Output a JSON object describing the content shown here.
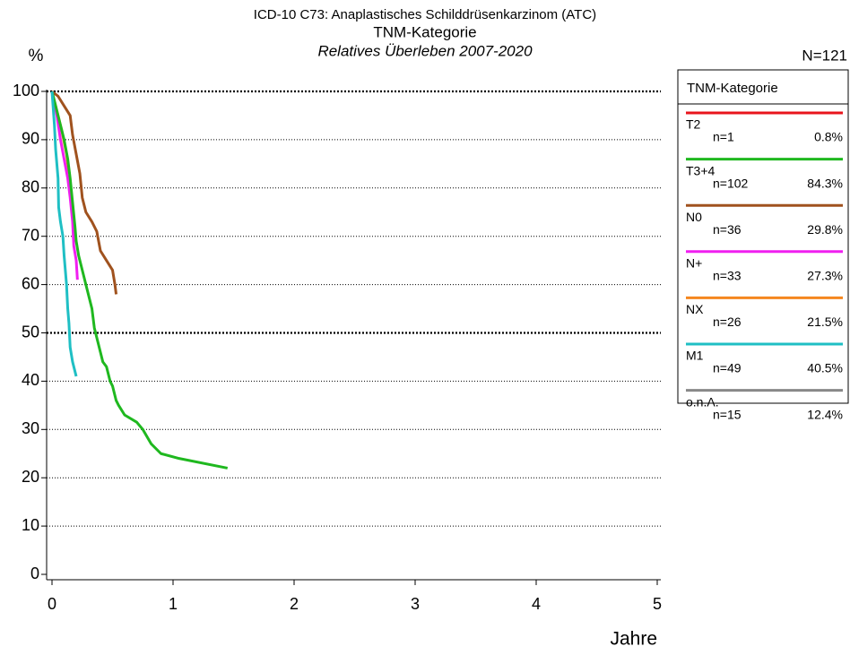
{
  "chart_data": {
    "type": "line",
    "title": "ICD-10 C73: Anaplastisches Schilddrüsenkarzinom (ATC)",
    "subtitle": "TNM-Kategorie",
    "subtitle2": "Relatives Überleben 2007-2020",
    "ylabel": "%",
    "xlabel": "Jahre",
    "total": "N=121",
    "legend_title": "TNM-Kategorie",
    "legend_position": "right",
    "xlim": [
      0,
      5
    ],
    "xticks": [
      0,
      1,
      2,
      3,
      4,
      5
    ],
    "ylim": [
      0,
      100
    ],
    "yticks": [
      0,
      10,
      20,
      30,
      40,
      50,
      60,
      70,
      80,
      90,
      100
    ],
    "grid": true,
    "bold_grid": [
      50,
      100
    ],
    "series": [
      {
        "name": "T2",
        "color": "#e8141c",
        "n": "n=1",
        "share": "0.8%",
        "x": [],
        "values": []
      },
      {
        "name": "T3+4",
        "color": "#1fb81f",
        "n": "n=102",
        "share": "84.3%",
        "x": [
          0,
          0.03,
          0.06,
          0.1,
          0.13,
          0.15,
          0.17,
          0.19,
          0.2,
          0.22,
          0.25,
          0.28,
          0.31,
          0.33,
          0.35,
          0.38,
          0.4,
          0.42,
          0.45,
          0.48,
          0.5,
          0.53,
          0.55,
          0.6,
          0.7,
          0.75,
          0.82,
          0.9,
          1.05,
          1.45
        ],
        "values": [
          100,
          97,
          94,
          90,
          86,
          82,
          77,
          72,
          69,
          66,
          63,
          60,
          57,
          55,
          51,
          48,
          46,
          44,
          43,
          40,
          39,
          36,
          35,
          33,
          31.5,
          30,
          27,
          25,
          24,
          22
        ]
      },
      {
        "name": "N0",
        "color": "#a0521e",
        "n": "n=36",
        "share": "29.8%",
        "x": [
          0,
          0.05,
          0.1,
          0.15,
          0.17,
          0.2,
          0.23,
          0.25,
          0.28,
          0.33,
          0.37,
          0.4,
          0.45,
          0.5,
          0.52,
          0.53
        ],
        "values": [
          100,
          99,
          97,
          95,
          91,
          87,
          83,
          78,
          75,
          73,
          71,
          67,
          65,
          63,
          60,
          58
        ]
      },
      {
        "name": "N+",
        "color": "#f01ff0",
        "n": "n=33",
        "share": "27.3%",
        "x": [
          0,
          0.04,
          0.07,
          0.1,
          0.13,
          0.15,
          0.17,
          0.18,
          0.2,
          0.21
        ],
        "values": [
          100,
          95,
          90,
          86,
          82,
          78,
          73,
          68,
          65,
          61
        ]
      },
      {
        "name": "NX",
        "color": "#f5871f",
        "n": "n=26",
        "share": "21.5%",
        "x": [
          0,
          0.04,
          0.08,
          0.12,
          0.14
        ],
        "values": [
          100,
          96,
          92,
          87,
          83
        ]
      },
      {
        "name": "M1",
        "color": "#1fbfc4",
        "n": "n=49",
        "share": "40.5%",
        "x": [
          0,
          0.02,
          0.03,
          0.05,
          0.055,
          0.07,
          0.09,
          0.1,
          0.12,
          0.13,
          0.14,
          0.15,
          0.17,
          0.2
        ],
        "values": [
          100,
          93,
          88,
          82,
          76,
          73,
          70,
          66,
          60,
          55,
          52,
          47,
          44,
          41
        ]
      },
      {
        "name": "o.n.A.",
        "color": "#888888",
        "n": "n=15",
        "share": "12.4%",
        "x": [],
        "values": []
      }
    ]
  }
}
